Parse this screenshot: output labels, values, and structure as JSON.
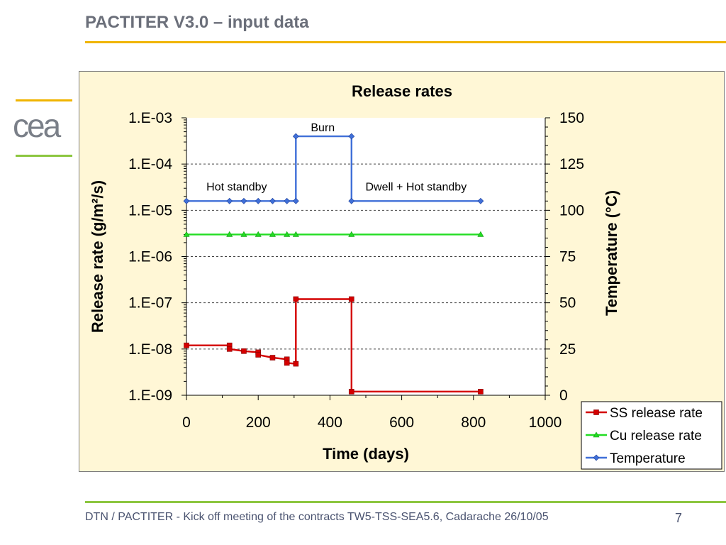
{
  "slide": {
    "title": "PACTITER V3.0 – input data",
    "logo_text": "cea",
    "footer": "DTN / PACTITER - Kick off meeting of the contracts TW5-TSS-SEA5.6, Cadarache 26/10/05",
    "page_number": "7"
  },
  "colors": {
    "accent_yellow": "#f0b400",
    "accent_green": "#8cc63f",
    "plot_background": "#fff7d6"
  },
  "chart_data": {
    "type": "line",
    "title": "Release rates",
    "xlabel": "Time (days)",
    "ylabel": "Release rate (g/m²/s)",
    "y2label": "Temperature (°C)",
    "xlim": [
      0,
      1000
    ],
    "xticks": [
      "0",
      "200",
      "400",
      "600",
      "800",
      "1000"
    ],
    "ylim": [
      1e-09,
      0.001
    ],
    "yscale": "log",
    "yticks": [
      "1.E-09",
      "1.E-08",
      "1.E-07",
      "1.E-06",
      "1.E-05",
      "1.E-04",
      "1.E-03"
    ],
    "y2lim": [
      0,
      150
    ],
    "y2ticks": [
      "0",
      "25",
      "50",
      "75",
      "100",
      "125",
      "150"
    ],
    "grid": "horizontal dashed",
    "legend_position": "bottom-right",
    "series": [
      {
        "name": "SS release rate",
        "axis": "left",
        "color": "#d40000",
        "marker": "square",
        "step": true,
        "x": [
          0,
          120,
          120,
          160,
          200,
          200,
          240,
          280,
          280,
          305,
          305,
          460,
          460,
          820
        ],
        "y": [
          1.2e-08,
          1.2e-08,
          1e-08,
          9e-09,
          8.5e-09,
          7.5e-09,
          6.5e-09,
          6e-09,
          5e-09,
          4.8e-09,
          1.2e-07,
          1.2e-07,
          1.2e-09,
          1.2e-09
        ]
      },
      {
        "name": "Cu release rate",
        "axis": "left",
        "color": "#22dd22",
        "marker": "triangle",
        "step": false,
        "x": [
          0,
          120,
          160,
          200,
          240,
          280,
          305,
          460,
          820
        ],
        "y": [
          3e-06,
          3e-06,
          3e-06,
          3e-06,
          3e-06,
          3e-06,
          3e-06,
          3e-06,
          3e-06
        ]
      },
      {
        "name": "Temperature",
        "axis": "right",
        "color": "#3f6fd8",
        "marker": "diamond",
        "step": true,
        "x": [
          0,
          120,
          160,
          200,
          240,
          280,
          305,
          305,
          460,
          460,
          820
        ],
        "y": [
          105,
          105,
          105,
          105,
          105,
          105,
          105,
          140,
          140,
          105,
          105
        ]
      }
    ],
    "annotations": [
      {
        "text": "Burn",
        "x": 380,
        "y2": 145
      },
      {
        "text": "Hot standby",
        "x": 140,
        "y2": 113
      },
      {
        "text": "Dwell + Hot standby",
        "x": 640,
        "y2": 113
      }
    ]
  }
}
